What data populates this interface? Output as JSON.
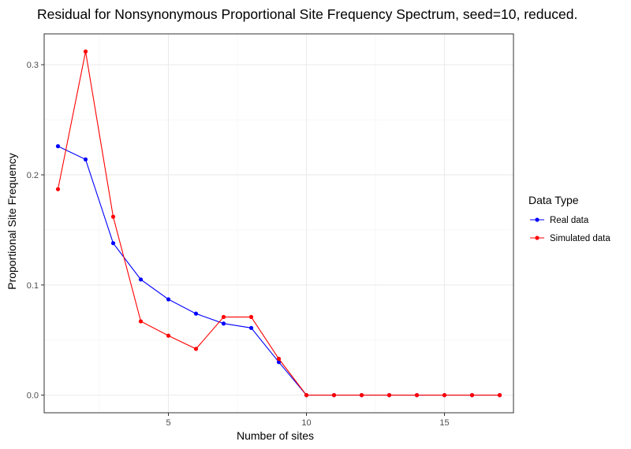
{
  "chart_data": {
    "type": "line",
    "title": "Residual for Nonsynonymous Proportional Site Frequency Spectrum, seed=10, reduced.",
    "xlabel": "Number of sites",
    "ylabel": "Proportional Site Frequency",
    "xlim": [
      0.5,
      17.5
    ],
    "ylim": [
      -0.016,
      0.328
    ],
    "x_ticks": [
      5,
      10,
      15
    ],
    "y_ticks": [
      0.0,
      0.1,
      0.2,
      0.3
    ],
    "x_tick_labels": [
      "5",
      "10",
      "15"
    ],
    "y_tick_labels": [
      "0.0",
      "0.1",
      "0.2",
      "0.3"
    ],
    "grid": true,
    "legend": {
      "title": "Data Type",
      "position": "right"
    },
    "x": [
      1,
      2,
      3,
      4,
      5,
      6,
      7,
      8,
      9,
      10,
      11,
      12,
      13,
      14,
      15,
      16,
      17
    ],
    "series": [
      {
        "name": "Real data",
        "color": "#0000ff",
        "values": [
          0.226,
          0.214,
          0.138,
          0.105,
          0.087,
          0.074,
          0.065,
          0.061,
          0.03,
          0,
          0,
          0,
          0,
          0,
          0,
          0,
          0
        ]
      },
      {
        "name": "Simulated data",
        "color": "#ff0000",
        "values": [
          0.187,
          0.312,
          0.162,
          0.067,
          0.054,
          0.042,
          0.071,
          0.071,
          0.033,
          0,
          0,
          0,
          0,
          0,
          0,
          0,
          0
        ]
      }
    ]
  }
}
